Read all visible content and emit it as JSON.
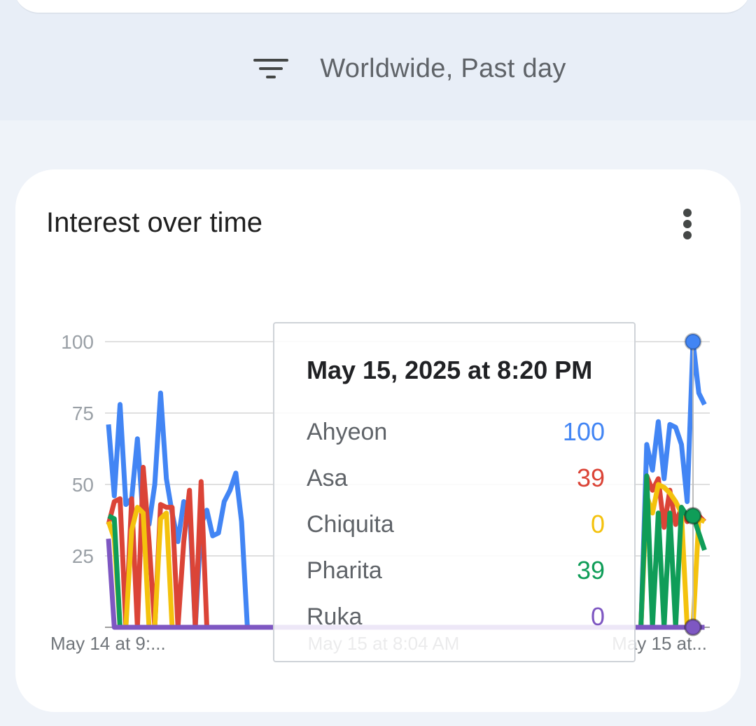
{
  "filter": {
    "icon": "filter-list-icon",
    "label": "Worldwide, Past day"
  },
  "card": {
    "title": "Interest over time",
    "menu_icon": "more-vert-icon"
  },
  "chart_data": {
    "type": "line",
    "ylim": [
      0,
      100
    ],
    "y_ticks": [
      "100",
      "75",
      "50",
      "25"
    ],
    "x_tick_labels": [
      "May 14 at 9:...",
      "May 15 at 8:04 AM",
      "May 15 at..."
    ],
    "series": [
      {
        "name": "Ahyeon",
        "color": "#4285f4",
        "values": [
          71,
          46,
          78,
          43,
          45,
          66,
          38,
          36,
          50,
          82,
          52,
          40,
          30,
          44,
          42,
          0,
          36,
          41,
          32,
          33,
          44,
          48,
          54,
          37,
          0,
          0,
          0,
          0,
          0,
          0,
          0,
          0,
          0,
          0,
          0,
          0,
          0,
          0,
          0,
          0,
          0,
          0,
          0,
          0,
          0,
          0,
          0,
          0,
          0,
          0,
          0,
          0,
          0,
          0,
          0,
          0,
          0,
          0,
          0,
          0,
          0,
          0,
          0,
          0,
          0,
          0,
          0,
          0,
          0,
          0,
          0,
          0,
          0,
          0,
          0,
          0,
          0,
          0,
          0,
          0,
          0,
          0,
          0,
          0,
          0,
          0,
          0,
          0,
          0,
          0,
          0,
          0,
          0,
          64,
          55,
          72,
          52,
          71,
          70,
          64,
          44,
          100,
          82,
          78
        ]
      },
      {
        "name": "Asa",
        "color": "#db4437",
        "values": [
          36,
          44,
          45,
          0,
          45,
          0,
          56,
          30,
          0,
          43,
          42,
          42,
          0,
          30,
          48,
          0,
          51,
          0,
          0,
          0,
          0,
          0,
          0,
          0,
          0,
          0,
          0,
          0,
          0,
          0,
          0,
          0,
          0,
          0,
          0,
          0,
          0,
          0,
          0,
          0,
          0,
          0,
          0,
          0,
          0,
          0,
          0,
          0,
          0,
          0,
          0,
          0,
          0,
          0,
          0,
          0,
          0,
          0,
          0,
          0,
          0,
          0,
          0,
          0,
          0,
          0,
          0,
          0,
          0,
          0,
          0,
          0,
          0,
          0,
          0,
          0,
          0,
          0,
          0,
          0,
          0,
          0,
          0,
          0,
          0,
          0,
          0,
          0,
          0,
          0,
          0,
          0,
          0,
          53,
          48,
          52,
          35,
          48,
          36,
          42,
          37,
          39,
          39,
          37
        ]
      },
      {
        "name": "Chiquita",
        "color": "#f4c20d",
        "values": [
          37,
          31,
          0,
          0,
          34,
          42,
          40,
          0,
          0,
          38,
          40,
          0,
          0,
          0,
          0,
          0,
          0,
          0,
          0,
          0,
          0,
          0,
          0,
          0,
          0,
          0,
          0,
          0,
          0,
          0,
          0,
          0,
          0,
          0,
          0,
          0,
          0,
          0,
          0,
          0,
          0,
          0,
          0,
          0,
          0,
          0,
          0,
          0,
          0,
          0,
          0,
          0,
          0,
          0,
          0,
          0,
          0,
          0,
          0,
          0,
          0,
          0,
          0,
          0,
          0,
          0,
          0,
          0,
          0,
          0,
          0,
          0,
          0,
          0,
          0,
          0,
          0,
          0,
          0,
          0,
          0,
          0,
          0,
          0,
          0,
          0,
          0,
          0,
          0,
          0,
          0,
          0,
          0,
          46,
          40,
          50,
          49,
          47,
          44,
          40,
          0,
          0,
          38,
          37
        ]
      },
      {
        "name": "Pharita",
        "color": "#0f9d58",
        "values": [
          39,
          38,
          0,
          0,
          0,
          0,
          0,
          0,
          0,
          0,
          0,
          0,
          0,
          0,
          0,
          0,
          0,
          0,
          0,
          0,
          0,
          0,
          0,
          0,
          0,
          0,
          0,
          0,
          0,
          0,
          0,
          0,
          0,
          0,
          0,
          0,
          0,
          0,
          0,
          0,
          0,
          0,
          0,
          0,
          0,
          0,
          0,
          0,
          0,
          0,
          0,
          0,
          0,
          0,
          0,
          0,
          0,
          0,
          0,
          0,
          0,
          0,
          0,
          0,
          0,
          0,
          0,
          0,
          0,
          0,
          0,
          0,
          0,
          0,
          0,
          0,
          0,
          0,
          0,
          0,
          0,
          0,
          0,
          0,
          0,
          0,
          0,
          0,
          0,
          0,
          0,
          0,
          0,
          53,
          0,
          40,
          0,
          40,
          0,
          42,
          39,
          39,
          33,
          27
        ]
      },
      {
        "name": "Ruka",
        "color": "#7e57c2",
        "values": [
          31,
          0,
          0,
          0,
          0,
          0,
          0,
          0,
          0,
          0,
          0,
          0,
          0,
          0,
          0,
          0,
          0,
          0,
          0,
          0,
          0,
          0,
          0,
          0,
          0,
          0,
          0,
          0,
          0,
          0,
          0,
          0,
          0,
          0,
          0,
          0,
          0,
          0,
          0,
          0,
          0,
          0,
          0,
          0,
          0,
          0,
          0,
          0,
          0,
          0,
          0,
          0,
          0,
          0,
          0,
          0,
          0,
          0,
          0,
          0,
          0,
          0,
          0,
          0,
          0,
          0,
          0,
          0,
          0,
          0,
          0,
          0,
          0,
          0,
          0,
          0,
          0,
          0,
          0,
          0,
          0,
          0,
          0,
          0,
          0,
          0,
          0,
          0,
          0,
          0,
          0,
          0,
          0,
          0,
          0,
          0,
          0,
          0,
          0,
          0,
          0,
          0,
          0,
          0
        ]
      }
    ],
    "hover_index": 101,
    "grid": true
  },
  "tooltip": {
    "date": "May 15, 2025 at 8:20 PM",
    "rows": [
      {
        "name": "Ahyeon",
        "value": "100",
        "color": "#4285f4"
      },
      {
        "name": "Asa",
        "value": "39",
        "color": "#db4437"
      },
      {
        "name": "Chiquita",
        "value": "0",
        "color": "#f4c20d"
      },
      {
        "name": "Pharita",
        "value": "39",
        "color": "#0f9d58"
      },
      {
        "name": "Ruka",
        "value": "0",
        "color": "#7e57c2"
      }
    ]
  }
}
